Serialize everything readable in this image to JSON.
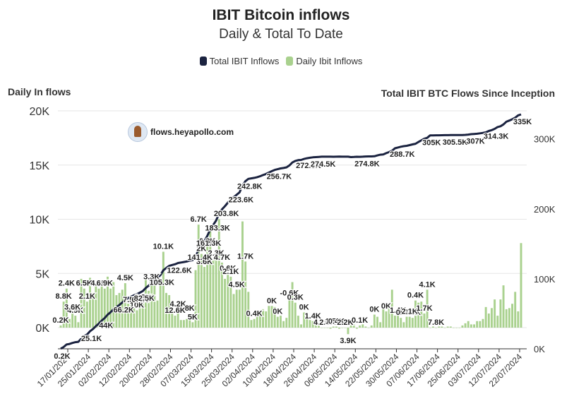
{
  "chart_data": {
    "type": "bar",
    "title": "IBIT Bitcoin inflows",
    "subtitle": "Daily & Total To Date",
    "ylabel_left": "Daily In flows",
    "ylabel_right": "Total IBIT BTC Flows Since Inception",
    "watermark": "flows.heyapollo.com",
    "legend_position": "top-center",
    "grid": true,
    "ylim_left": [
      -2000,
      20000
    ],
    "yticks_left": [
      "0K",
      "5K",
      "10K",
      "15K",
      "20K"
    ],
    "ylim_right": [
      0,
      340000
    ],
    "yticks_right": [
      "0K",
      "100K",
      "200K",
      "300K"
    ],
    "xtick_labels": [
      "17/01/2024",
      "25/01/2024",
      "02/02/2024",
      "12/02/2024",
      "20/02/2024",
      "28/02/2024",
      "07/03/2024",
      "15/03/2024",
      "25/03/2024",
      "02/04/2024",
      "10/04/2024",
      "18/04/2024",
      "26/04/2024",
      "06/05/2024",
      "14/05/2024",
      "22/05/2024",
      "30/05/2024",
      "07/06/2024",
      "17/06/2024",
      "25/06/2024",
      "03/07/2024",
      "12/07/2024",
      "22/07/2024"
    ],
    "series": [
      {
        "name": "Total IBIT Inflows",
        "color": "#1b2340",
        "kind": "line",
        "axis": "right",
        "values": [
          0.2,
          2.6,
          6.2,
          7,
          8.4,
          9.5,
          10,
          14.5,
          18.1,
          20.5,
          25.1,
          28.3,
          32.4,
          36,
          40.4,
          44,
          48.7,
          52.3,
          56.5,
          59.5,
          62.7,
          66.2,
          70.3,
          72.5,
          74.6,
          76.5,
          78.1,
          80.2,
          82.5,
          86.9,
          90.3,
          94.5,
          98.8,
          101.3,
          105.3,
          112.3,
          115.5,
          118.5,
          119.8,
          120.9,
          122.6,
          123.3,
          124,
          124.8,
          126.1,
          126.6,
          131.9,
          141.4,
          148.2,
          153.8,
          161.3,
          170.5,
          176.9,
          183.3,
          193.3,
          199.3,
          203.8,
          208.8,
          213.5,
          216.6,
          220.1,
          223.6,
          233.4,
          239.5,
          242.8,
          243.5,
          244.3,
          245.3,
          246.6,
          248.3,
          249.8,
          251.8,
          253.8,
          255.7,
          256.7,
          257.8,
          258.4,
          259.3,
          262,
          266.2,
          268.5,
          269.6,
          269.9,
          271.3,
          272.3,
          273,
          273.6,
          273.9,
          274.2,
          274.5,
          274.5,
          274.5,
          274.5,
          274.4,
          274.5,
          274.6,
          274.5,
          274.5,
          274.5,
          273.9,
          274.1,
          274.4,
          274.3,
          274.5,
          274.8,
          274.9,
          274.9,
          275.1,
          276.3,
          277.3,
          277.8,
          279.6,
          281.1,
          283,
          286.5,
          287.6,
          288.7,
          289.6,
          290.1,
          291.1,
          292.1,
          293,
          295.5,
          297.8,
          300.2,
          301.5,
          305,
          305,
          305.1,
          305.1,
          305.2,
          305.3,
          305.3,
          305.4,
          305.5,
          305.5,
          305.5,
          305.5,
          305.7,
          306.1,
          306.7,
          307,
          307.3,
          307.9,
          308.5,
          309.3,
          311.2,
          312.5,
          314.3,
          316.9,
          318,
          320.6,
          324.5,
          326.2,
          328,
          330.2,
          333.5,
          335
        ]
      },
      {
        "name": "Daily Ibit Inflows",
        "color": "#a9d18e",
        "kind": "bar",
        "axis": "left",
        "values": [
          0.2,
          2.4,
          3.6,
          0.8,
          1.4,
          1.1,
          0.5,
          4.5,
          3.6,
          2.4,
          4.6,
          3.2,
          4.1,
          3.6,
          4.4,
          3.6,
          4.7,
          3.6,
          4.2,
          3,
          3.2,
          3.5,
          4.1,
          2.2,
          2.1,
          1.9,
          1.6,
          2.1,
          2.3,
          4.4,
          3.4,
          4.2,
          4.3,
          2.5,
          4,
          7,
          3.2,
          3,
          1.3,
          1.1,
          1.7,
          0.7,
          0.7,
          0.8,
          1.3,
          0.5,
          5.3,
          9.5,
          6.8,
          5.6,
          7.5,
          9.2,
          6.4,
          6.4,
          10,
          6,
          4.5,
          5,
          4.7,
          3.1,
          3.5,
          3.5,
          9.8,
          6.1,
          3.3,
          0.7,
          0.8,
          1,
          1.3,
          1.7,
          1.5,
          2,
          2,
          1.9,
          1,
          1.1,
          0.6,
          0.9,
          2.7,
          4.2,
          2.3,
          1.1,
          0.3,
          1.4,
          1,
          0.7,
          0.6,
          0.3,
          0.3,
          0,
          0,
          0,
          -0.1,
          0.1,
          0.1,
          -0.1,
          0,
          0,
          -0.6,
          0.2,
          0.3,
          -0.1,
          0.2,
          0.3,
          0.1,
          0,
          0.2,
          1.2,
          1,
          0.5,
          1.8,
          1.5,
          1.9,
          3.5,
          1.1,
          1.1,
          0.9,
          0.5,
          1,
          1,
          0.9,
          2.5,
          2.3,
          2.4,
          1.3,
          3.5,
          0,
          0.1,
          0,
          0.1,
          0.1,
          0,
          0.1,
          0.1,
          0,
          0,
          0,
          0.2,
          0.4,
          0.6,
          0.3,
          0.3,
          0.6,
          0.6,
          0.8,
          1.9,
          1.3,
          1.8,
          2.6,
          1.1,
          2.6,
          3.9,
          1.7,
          1.8,
          2.2,
          3.3,
          1.5
        ],
        "highlight_last": 7.8
      }
    ],
    "bar_labels": [
      {
        "i": 0,
        "t": "0.2K"
      },
      {
        "i": 2,
        "t": "2.4K"
      },
      {
        "i": 1,
        "t": "8.8K"
      },
      {
        "i": 5,
        "t": "4.9K"
      },
      {
        "i": 4,
        "t": "3.6K"
      },
      {
        "i": 8,
        "t": "6.5K"
      },
      {
        "i": 9,
        "t": "2.1K"
      },
      {
        "i": 13,
        "t": "4.6K"
      },
      {
        "i": 15,
        "t": "6.9K"
      },
      {
        "i": 22,
        "t": "4.5K"
      },
      {
        "i": 24,
        "t": "7.5K"
      },
      {
        "i": 26,
        "t": "10K"
      },
      {
        "i": 27,
        "t": "6.4K"
      },
      {
        "i": 28,
        "t": "1.9K"
      },
      {
        "i": 31,
        "t": "3.3K"
      },
      {
        "i": 35,
        "t": "10.1K"
      },
      {
        "i": 39,
        "t": "12.6K"
      },
      {
        "i": 40,
        "t": "4.2K"
      },
      {
        "i": 44,
        "t": "8K"
      },
      {
        "i": 45,
        "t": "5K"
      },
      {
        "i": 47,
        "t": "6.7K"
      },
      {
        "i": 48,
        "t": "2K"
      },
      {
        "i": 49,
        "t": "3.6K"
      },
      {
        "i": 50,
        "t": "0.8K"
      },
      {
        "i": 53,
        "t": "2.3K"
      },
      {
        "i": 55,
        "t": "4.7K"
      },
      {
        "i": 57,
        "t": "0.6K"
      },
      {
        "i": 58,
        "t": "2.1K"
      },
      {
        "i": 60,
        "t": "4.5K"
      },
      {
        "i": 63,
        "t": "1.7K"
      },
      {
        "i": 66,
        "t": "0.4K"
      },
      {
        "i": 72,
        "t": "0K"
      },
      {
        "i": 74,
        "t": "0K"
      },
      {
        "i": 78,
        "t": "-0.6K"
      },
      {
        "i": 80,
        "t": "0.3K"
      },
      {
        "i": 83,
        "t": "0K"
      },
      {
        "i": 86,
        "t": "1.4K"
      },
      {
        "i": 89,
        "t": "4.2K"
      },
      {
        "i": 91,
        "t": "2.6K"
      },
      {
        "i": 93,
        "t": "1.5K"
      },
      {
        "i": 94,
        "t": "0.4K"
      },
      {
        "i": 98,
        "t": "3.9K"
      },
      {
        "i": 97,
        "t": "2.2K"
      },
      {
        "i": 102,
        "t": "0.1K"
      },
      {
        "i": 107,
        "t": "0K"
      },
      {
        "i": 111,
        "t": "0K"
      },
      {
        "i": 115,
        "t": "1.4K"
      },
      {
        "i": 116,
        "t": "0K"
      },
      {
        "i": 120,
        "t": "3.3K"
      },
      {
        "i": 119,
        "t": "2.1K"
      },
      {
        "i": 121,
        "t": "0.4K"
      },
      {
        "i": 125,
        "t": "4.1K"
      },
      {
        "i": 124,
        "t": "1.7K"
      },
      {
        "i": 128,
        "t": "7.8K"
      }
    ],
    "line_labels": [
      {
        "t": "0.2K"
      },
      {
        "t": "25.1K"
      },
      {
        "t": "44K"
      },
      {
        "t": "66.2K"
      },
      {
        "t": "82.5K"
      },
      {
        "t": "105.3K"
      },
      {
        "t": "122.6K"
      },
      {
        "t": "141.4K"
      },
      {
        "t": "161.3K"
      },
      {
        "t": "183.3K"
      },
      {
        "t": "203.8K"
      },
      {
        "t": "223.6K"
      },
      {
        "t": "242.8K"
      },
      {
        "t": "256.7K"
      },
      {
        "t": "272.3K"
      },
      {
        "t": "274.5K"
      },
      {
        "t": "274.8K"
      },
      {
        "t": "288.7K"
      },
      {
        "t": "305K"
      },
      {
        "t": "305.5K"
      },
      {
        "t": "307K"
      },
      {
        "t": "314.3K"
      },
      {
        "t": "335K"
      }
    ]
  }
}
